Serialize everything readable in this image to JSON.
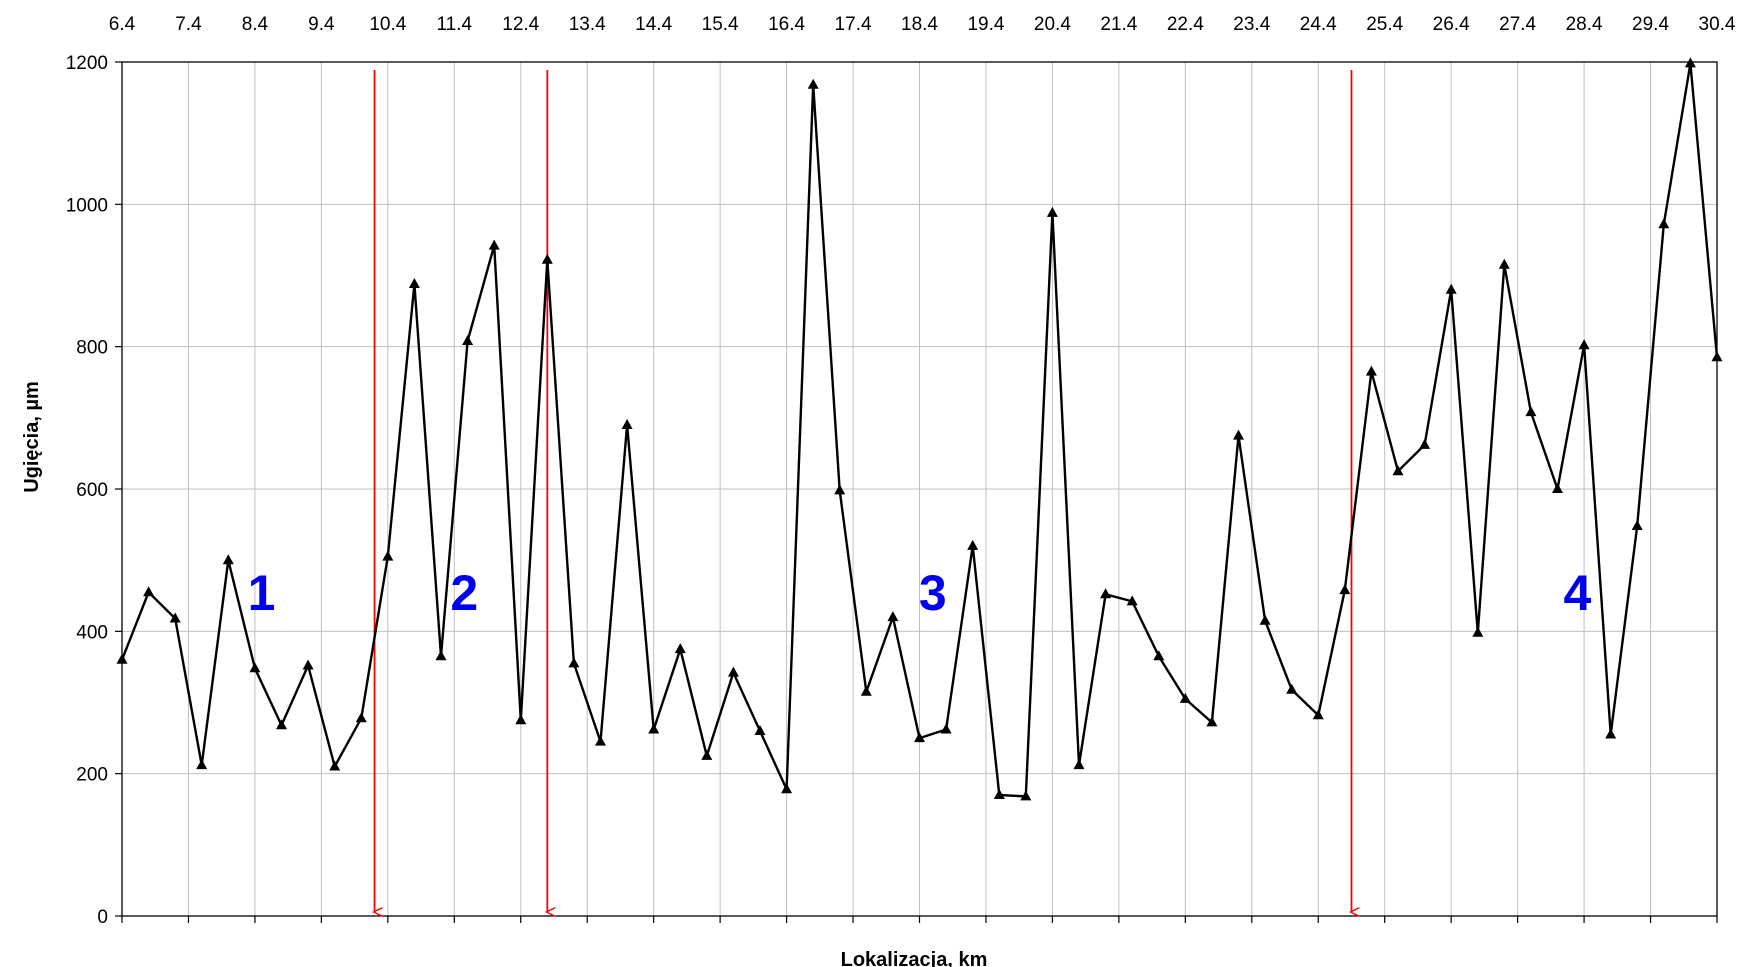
{
  "chart_data": {
    "type": "line",
    "title": "",
    "xlabel": "Lokalizacja, km",
    "ylabel": "Ugięcia, µm",
    "xlim": [
      6.4,
      30.4
    ],
    "ylim": [
      0,
      1200
    ],
    "x_tick_labels": [
      "6.4",
      "7.4",
      "8.4",
      "9.4",
      "10.4",
      "11.4",
      "12.4",
      "13.4",
      "14.4",
      "15.4",
      "16.4",
      "17.4",
      "18.4",
      "19.4",
      "20.4",
      "21.4",
      "22.4",
      "23.4",
      "24.4",
      "25.4",
      "26.4",
      "27.4",
      "28.4",
      "29.4",
      "30.4"
    ],
    "y_ticks": [
      0,
      200,
      400,
      600,
      800,
      1000,
      1200
    ],
    "grid": true,
    "x_tick_position": "top",
    "colors": {
      "line": "#000000",
      "grid": "#c0c0c0",
      "dividers": "#ff0000",
      "segment_labels": "#0000ee"
    },
    "series": [
      {
        "x": [
          6.4,
          6.8,
          7.2,
          7.6,
          8.0,
          8.4,
          8.8,
          9.2,
          9.6,
          10.0,
          10.4,
          10.8,
          11.2,
          11.6,
          12.0,
          12.4,
          12.8,
          13.2,
          13.6,
          14.0,
          14.4,
          14.8,
          15.2,
          15.6,
          16.0,
          16.4,
          16.8,
          17.2,
          17.6,
          18.0,
          18.4,
          18.8,
          19.2,
          19.6,
          20.0,
          20.4,
          20.8,
          21.2,
          21.6,
          22.0,
          22.4,
          22.8,
          23.2,
          23.6,
          24.0,
          24.4,
          24.8,
          25.2,
          25.6,
          26.0,
          26.4,
          26.8,
          27.2,
          27.6,
          28.0,
          28.4,
          28.8,
          29.2,
          29.6,
          30.0,
          30.4
        ],
        "y": [
          360,
          455,
          418,
          212,
          500,
          348,
          268,
          352,
          210,
          278,
          505,
          888,
          365,
          808,
          942,
          275,
          922,
          355,
          245,
          690,
          262,
          375,
          225,
          342,
          260,
          178,
          1168,
          598,
          315,
          420,
          250,
          262,
          520,
          170,
          168,
          988,
          212,
          452,
          442,
          365,
          305,
          272,
          675,
          415,
          318,
          282,
          458,
          765,
          625,
          662,
          880,
          398,
          915,
          708,
          600,
          802,
          255,
          548,
          972,
          1198,
          785
        ]
      }
    ],
    "dividers_x": [
      10.2,
      12.8,
      24.9
    ],
    "segment_labels": [
      {
        "text": "1",
        "x": 8.5,
        "y": 430
      },
      {
        "text": "2",
        "x": 11.55,
        "y": 430
      },
      {
        "text": "3",
        "x": 18.6,
        "y": 430
      },
      {
        "text": "4",
        "x": 28.3,
        "y": 430
      }
    ]
  }
}
